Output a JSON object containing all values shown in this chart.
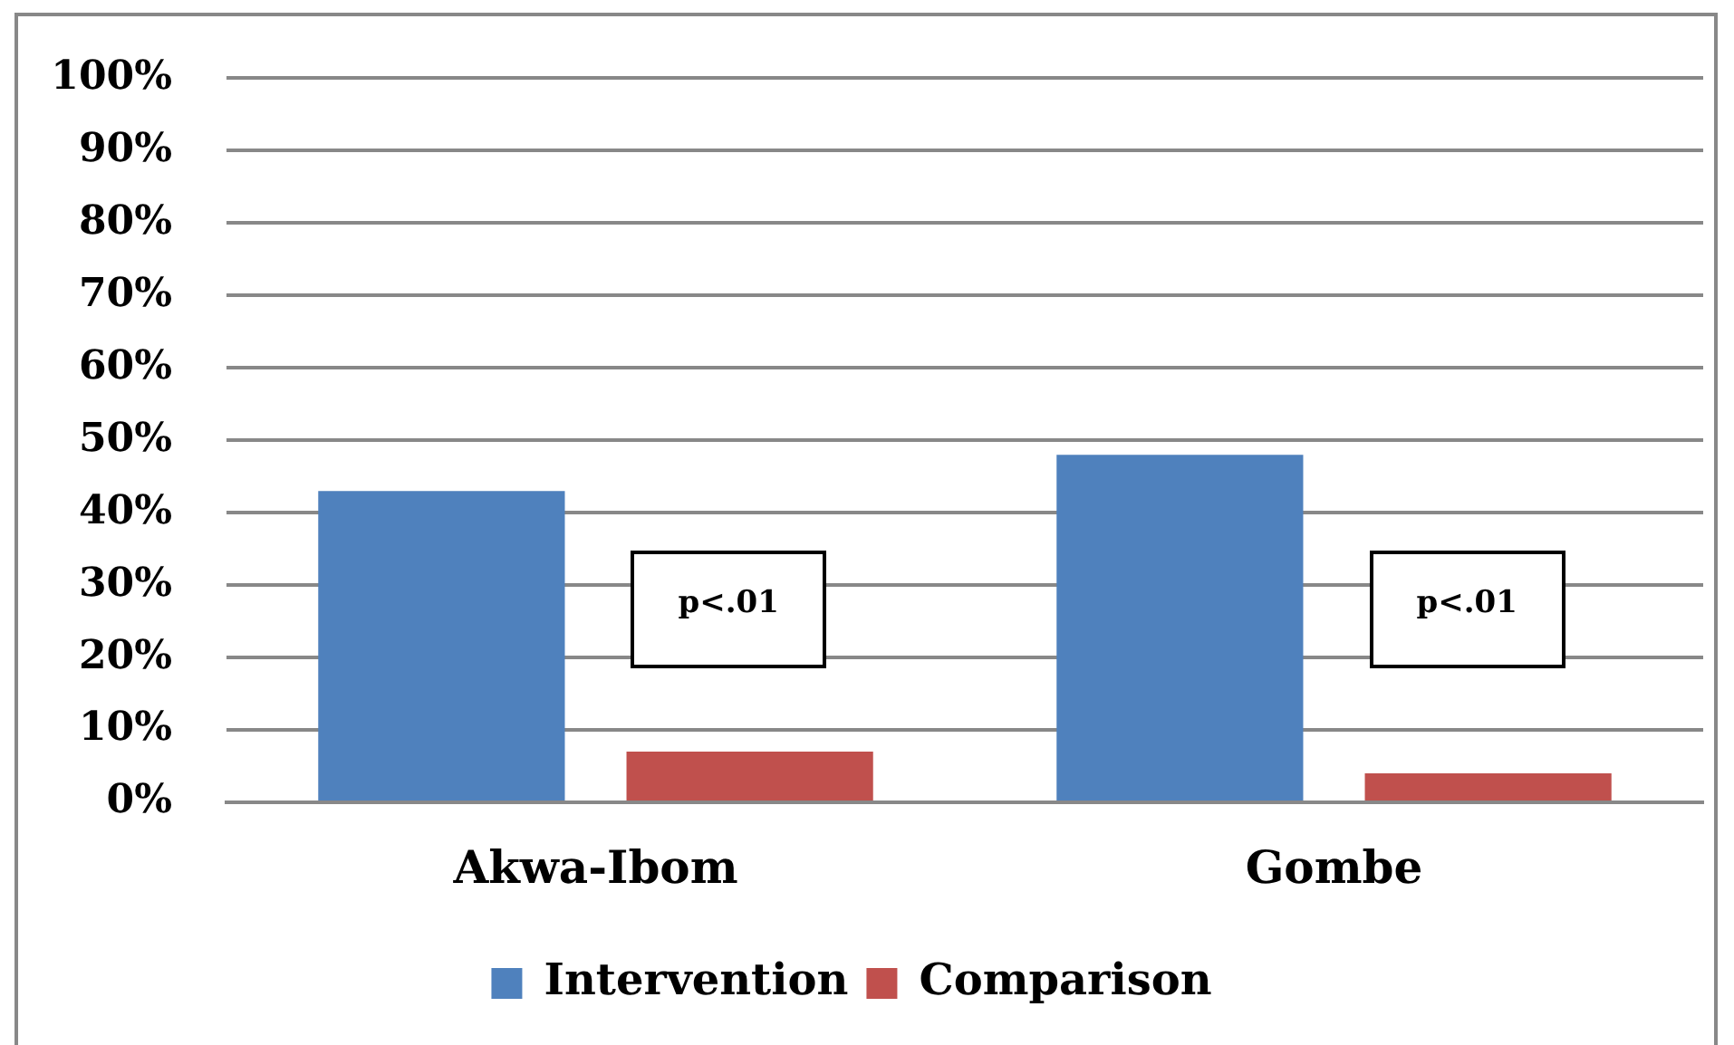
{
  "chart_data": {
    "type": "bar",
    "categories": [
      "Akwa-Ibom",
      "Gombe"
    ],
    "series": [
      {
        "name": "Intervention",
        "color": "#4f81bd",
        "values": [
          43,
          48
        ]
      },
      {
        "name": "Comparison",
        "color": "#c0504d",
        "values": [
          7,
          4
        ]
      }
    ],
    "ylim": [
      0,
      100
    ],
    "yticks": [
      {
        "value": 0,
        "label": "0%"
      },
      {
        "value": 10,
        "label": "10%"
      },
      {
        "value": 20,
        "label": "20%"
      },
      {
        "value": 30,
        "label": "30%"
      },
      {
        "value": 40,
        "label": "40%"
      },
      {
        "value": 50,
        "label": "50%"
      },
      {
        "value": 60,
        "label": "60%"
      },
      {
        "value": 70,
        "label": "70%"
      },
      {
        "value": 80,
        "label": "80%"
      },
      {
        "value": 90,
        "label": "90%"
      },
      {
        "value": 100,
        "label": "100%"
      }
    ],
    "grid": "y",
    "legend": "bottom",
    "annotations": [
      "p<.01",
      "p<.01"
    ]
  }
}
